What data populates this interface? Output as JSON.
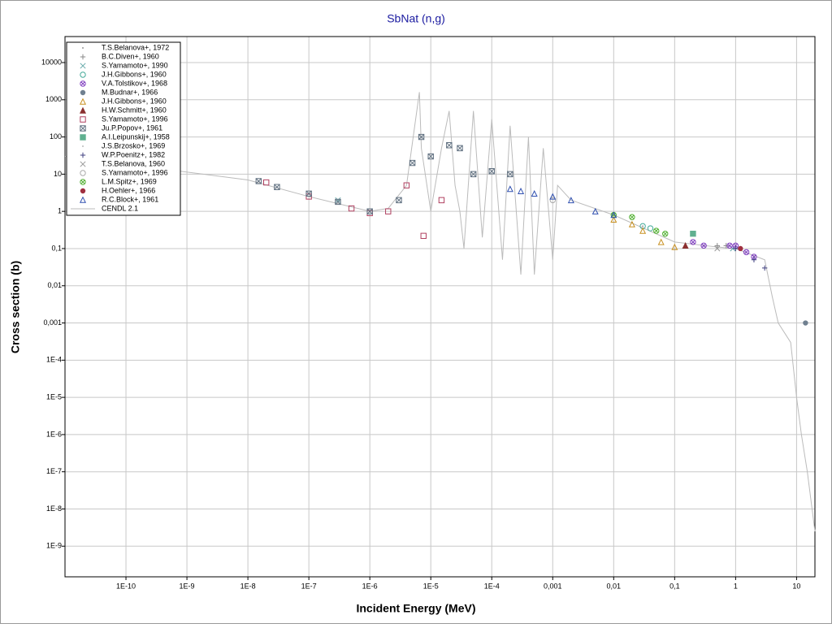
{
  "chart_data": {
    "type": "scatter",
    "title": "SbNat (n,g)",
    "x_label": "Incident Energy (MeV)",
    "y_label": "Cross section (b)",
    "xscale": "log",
    "yscale": "log",
    "grid": true,
    "legend": "upper left",
    "xlim": [
      1e-11,
      20
    ],
    "ylim": [
      1.5e-10,
      50000
    ],
    "xticks": [
      {
        "value": 1e-10,
        "label": "1E-10"
      },
      {
        "value": 1e-09,
        "label": "1E-9"
      },
      {
        "value": 1e-08,
        "label": "1E-8"
      },
      {
        "value": 1e-07,
        "label": "1E-7"
      },
      {
        "value": 1e-06,
        "label": "1E-6"
      },
      {
        "value": 1e-05,
        "label": "1E-5"
      },
      {
        "value": 0.0001,
        "label": "1E-4"
      },
      {
        "value": 0.001,
        "label": "0,001"
      },
      {
        "value": 0.01,
        "label": "0,01"
      },
      {
        "value": 0.1,
        "label": "0,1"
      },
      1,
      10
    ],
    "yticks": [
      {
        "value": 1e-09,
        "label": "1E-9"
      },
      {
        "value": 1e-08,
        "label": "1E-8"
      },
      {
        "value": 1e-07,
        "label": "1E-7"
      },
      {
        "value": 1e-06,
        "label": "1E-6"
      },
      {
        "value": 1e-05,
        "label": "1E-5"
      },
      {
        "value": 0.0001,
        "label": "1E-4"
      },
      {
        "value": 0.001,
        "label": "0,001"
      },
      {
        "value": 0.01,
        "label": "0,01"
      },
      {
        "value": 0.1,
        "label": "0,1"
      },
      1,
      10,
      100,
      1000,
      10000
    ],
    "series": [
      {
        "name": "T.S.Belanova+, 1972",
        "color": "#999999",
        "marker": "dot",
        "x": [
          0.02,
          0.03
        ],
        "values": [
          0.5,
          0.4
        ]
      },
      {
        "name": "B.C.Diven+, 1960",
        "color": "#888888",
        "marker": "plus",
        "x": [
          0.5,
          0.7
        ],
        "values": [
          0.12,
          0.12
        ]
      },
      {
        "name": "S.Yamamoto+, 1990",
        "color": "#66aaaa",
        "marker": "x",
        "x": [
          3e-07,
          0.9
        ],
        "values": [
          2,
          0.1
        ]
      },
      {
        "name": "J.H.Gibbons+, 1960",
        "color": "#44aa99",
        "marker": "circle",
        "x": [
          0.03,
          0.04
        ],
        "values": [
          0.4,
          0.35
        ]
      },
      {
        "name": "V.A.Tolstikov+, 1968",
        "color": "#8040c0",
        "marker": "circle-x",
        "x": [
          0.2,
          0.3,
          0.8,
          1,
          1.5,
          2
        ],
        "values": [
          0.15,
          0.12,
          0.12,
          0.12,
          0.08,
          0.06
        ]
      },
      {
        "name": "M.Budnar+, 1966",
        "color": "#708090",
        "marker": "filled-circle",
        "x": [
          14
        ],
        "values": [
          0.001
        ]
      },
      {
        "name": "J.H.Gibbons+, 1960",
        "color": "#c89020",
        "marker": "triangle",
        "x": [
          0.01,
          0.02,
          0.03,
          0.06,
          0.1
        ],
        "values": [
          0.6,
          0.45,
          0.3,
          0.15,
          0.11
        ]
      },
      {
        "name": "H.W.Schmitt+, 1960",
        "color": "#8b3030",
        "marker": "filled-triangle",
        "x": [
          0.15
        ],
        "values": [
          0.12
        ]
      },
      {
        "name": "S.Yamamoto+, 1996",
        "color": "#b04060",
        "marker": "square",
        "x": [
          2e-08,
          1e-07,
          5e-07,
          1e-06,
          2e-06,
          4e-06,
          7.6e-06,
          1.5e-05
        ],
        "values": [
          6,
          2.5,
          1.2,
          0.9,
          1,
          5,
          0.22,
          2
        ]
      },
      {
        "name": "Ju.P.Popov+, 1961",
        "color": "#607080",
        "marker": "square-x",
        "x": [
          1.5e-08,
          3e-08,
          1e-07,
          3e-07,
          1e-06,
          3e-06,
          5e-06,
          7e-06,
          1e-05,
          2e-05,
          3e-05,
          5e-05,
          0.0001,
          0.0002
        ],
        "values": [
          6.5,
          4.5,
          3,
          1.8,
          1,
          2,
          20,
          100,
          30,
          60,
          50,
          10,
          12,
          10
        ]
      },
      {
        "name": "A.I.Leipunskij+, 1958",
        "color": "#60b090",
        "marker": "filled-square",
        "x": [
          0.2
        ],
        "values": [
          0.25
        ]
      },
      {
        "name": "J.S.Brzosko+, 1969",
        "color": "#bbbbbb",
        "marker": "dot",
        "x": [
          0.1
        ],
        "values": [
          0.1
        ]
      },
      {
        "name": "W.P.Poenitz+, 1982",
        "color": "#404080",
        "marker": "plus",
        "x": [
          1,
          2,
          3
        ],
        "values": [
          0.1,
          0.05,
          0.03
        ]
      },
      {
        "name": "T.S.Belanova, 1960",
        "color": "#999999",
        "marker": "x",
        "x": [
          0.5
        ],
        "values": [
          0.1
        ]
      },
      {
        "name": "S.Yamamoto+, 1996",
        "color": "#aaaaaa",
        "marker": "circle",
        "x": [
          0.001
        ],
        "values": [
          2
        ]
      },
      {
        "name": "L.M.Spitz+, 1969",
        "color": "#50b030",
        "marker": "circle-x",
        "x": [
          0.01,
          0.02,
          0.05,
          0.07
        ],
        "values": [
          0.8,
          0.7,
          0.3,
          0.25
        ]
      },
      {
        "name": "H.Oehler+, 1966",
        "color": "#a03040",
        "marker": "filled-circle",
        "x": [
          1.2
        ],
        "values": [
          0.1
        ]
      },
      {
        "name": "R.C.Block+, 1961",
        "color": "#3050b0",
        "marker": "triangle",
        "x": [
          0.0002,
          0.0003,
          0.0005,
          0.001,
          0.002,
          0.005,
          0.01
        ],
        "values": [
          4,
          3.5,
          3,
          2.5,
          2,
          1,
          0.8
        ]
      },
      {
        "name": "CENDL 2.1",
        "color": "#bbbbbb",
        "marker": "line",
        "x": [
          1e-11,
          1e-08,
          1e-07,
          1e-06,
          2e-06,
          4e-06,
          6.5e-06,
          7e-06,
          1e-05,
          1.5e-05,
          2e-05,
          2.5e-05,
          3e-05,
          3.5e-05,
          5e-05,
          7e-05,
          0.0001,
          0.00015,
          0.0002,
          0.0003,
          0.0004,
          0.0005,
          0.0007,
          0.001,
          0.0012,
          0.002,
          0.01,
          0.1,
          0.5,
          1,
          3,
          4,
          5,
          8,
          10,
          12,
          15,
          20
        ],
        "values": [
          30,
          7,
          2.5,
          1,
          1.2,
          5,
          1600,
          50,
          1,
          50,
          500,
          5,
          1,
          0.1,
          500,
          0.2,
          300,
          0.05,
          200,
          0.02,
          100,
          0.02,
          50,
          0.05,
          5,
          2,
          0.8,
          0.15,
          0.11,
          0.1,
          0.05,
          0.005,
          0.001,
          0.0003,
          1e-05,
          1e-06,
          1e-07,
          2.5e-09
        ]
      }
    ]
  }
}
